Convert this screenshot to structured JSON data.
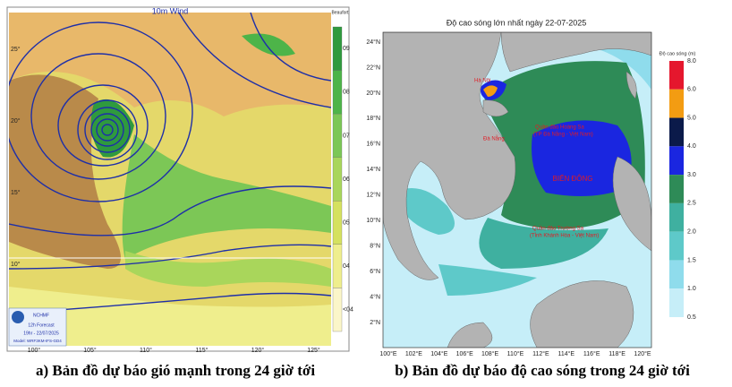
{
  "left_map": {
    "title": "10m Wind",
    "colorbar_title": "Beaufort",
    "colorbar": [
      {
        "label": "09",
        "color": "#2f9a3e"
      },
      {
        "label": "08",
        "color": "#4db449"
      },
      {
        "label": "07",
        "color": "#7cc756"
      },
      {
        "label": "06",
        "color": "#a9d65b"
      },
      {
        "label": "05",
        "color": "#d5e15f"
      },
      {
        "label": "04",
        "color": "#efee8d"
      },
      {
        "label": "<04",
        "color": "#fbf6c9"
      }
    ],
    "lat_labels": [
      "25°",
      "20°",
      "15°",
      "10°"
    ],
    "lon_labels": [
      "100°",
      "105°",
      "110°",
      "115°",
      "120°",
      "125°"
    ],
    "logo": {
      "name": "NCHMF",
      "line1": "12h Forecast",
      "line2": "19hr - 22/07/2025",
      "line3": "Model: WRF3KM-IFS-GD4"
    }
  },
  "right_map": {
    "title": "Độ cao sóng lớn nhất ngày 22-07-2025",
    "colorbar_title": "Độ cao sóng (m)",
    "colorbar_ticks": [
      "8.0",
      "6.0",
      "5.0",
      "4.0",
      "3.0",
      "2.5",
      "2.0",
      "1.5",
      "1.0",
      "0.5"
    ],
    "colorbar_colors": [
      "#e5172d",
      "#f39c12",
      "#0b1a4a",
      "#1a26e0",
      "#2e8b57",
      "#3fb0a0",
      "#5ec9c9",
      "#8fdcec",
      "#c6eef8"
    ],
    "lat_labels": [
      "24°N",
      "22°N",
      "20°N",
      "18°N",
      "16°N",
      "14°N",
      "12°N",
      "10°N",
      "8°N",
      "6°N",
      "4°N",
      "2°N"
    ],
    "lon_labels": [
      "100°E",
      "102°E",
      "104°E",
      "106°E",
      "108°E",
      "110°E",
      "112°E",
      "114°E",
      "116°E",
      "118°E",
      "120°E"
    ],
    "places": {
      "hanoi": "Hà Nội",
      "danang": "Đà Nẵng",
      "hoangsa": "Quần đảo Hoàng Sa",
      "hoangsa_sub": "(TP Đà Nẵng - Việt Nam)",
      "sea": "BIỂN ĐÔNG",
      "truongsa": "Quần đảo Trường Sa",
      "truongsa_sub": "(Tỉnh Khánh Hòa - Việt Nam)"
    }
  },
  "captions": {
    "a": "a) Bản đồ dự báo gió mạnh trong 24 giờ tới",
    "b": "b) Bản đồ dự báo độ cao sóng trong 24 giờ tới"
  }
}
